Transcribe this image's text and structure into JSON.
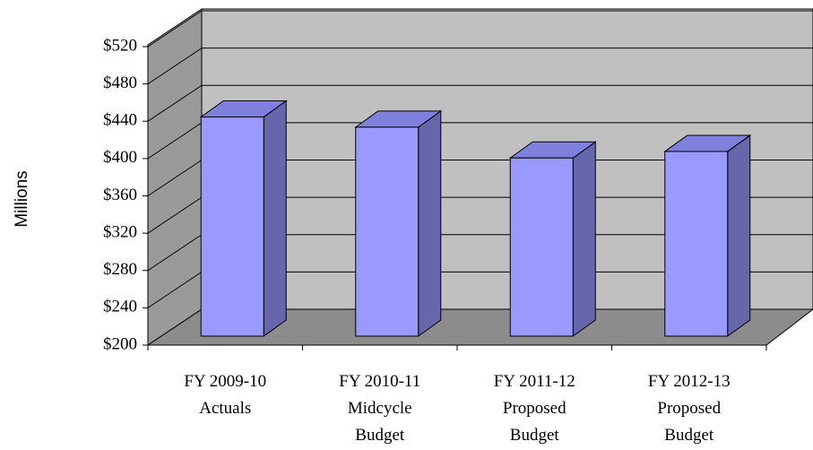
{
  "chart_data": {
    "type": "bar3d",
    "y_label": "Millions",
    "categories": [
      [
        "FY 2009-10",
        "Actuals"
      ],
      [
        "FY 2010-11",
        "Midcycle",
        "Budget"
      ],
      [
        "FY 2011-12",
        "Proposed",
        "Budget"
      ],
      [
        "FY 2012-13",
        "Proposed",
        "Budget"
      ]
    ],
    "values": [
      435,
      424,
      391,
      398
    ],
    "color": "#9999ff",
    "ylim": [
      200,
      520
    ],
    "yticks": [
      {
        "value": 200,
        "label": "$200"
      },
      {
        "value": 240,
        "label": "$240"
      },
      {
        "value": 280,
        "label": "$280"
      },
      {
        "value": 320,
        "label": "$320"
      },
      {
        "value": 360,
        "label": "$360"
      },
      {
        "value": 400,
        "label": "$400"
      },
      {
        "value": 440,
        "label": "$440"
      },
      {
        "value": 480,
        "label": "$480"
      },
      {
        "value": 520,
        "label": "$520"
      }
    ],
    "grid": true
  }
}
